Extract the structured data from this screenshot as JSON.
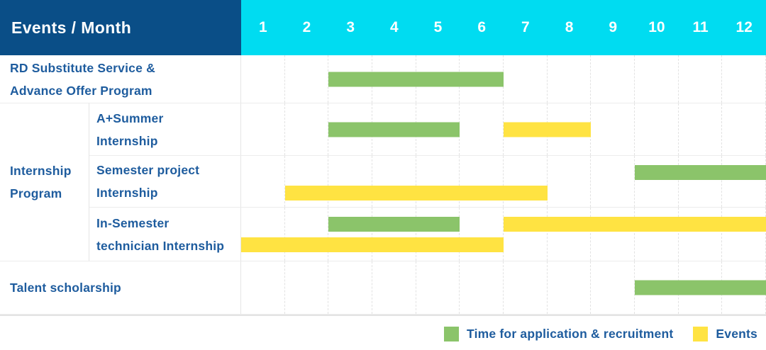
{
  "table": {
    "corner_label": "Events / Month",
    "months": [
      "1",
      "2",
      "3",
      "4",
      "5",
      "6",
      "7",
      "8",
      "9",
      "10",
      "11",
      "12"
    ],
    "group_label": "Internship\nProgram",
    "rows": [
      {
        "label": "RD Substitute Service &\nAdvance Offer Program",
        "bars": [
          {
            "color": "green",
            "start": 3,
            "end": 6,
            "line": "center"
          }
        ]
      },
      {
        "label": "A+Summer\nInternship",
        "bars": [
          {
            "color": "green",
            "start": 3,
            "end": 5,
            "line": "center"
          },
          {
            "color": "yellow",
            "start": 7,
            "end": 8,
            "line": "center"
          }
        ]
      },
      {
        "label": "Semester project\nInternship",
        "bars": [
          {
            "color": "green",
            "start": 10,
            "end": 12,
            "line": "top"
          },
          {
            "color": "yellow",
            "start": 2,
            "end": 7,
            "line": "bottom"
          }
        ]
      },
      {
        "label": "In-Semester\ntechnician Internship",
        "bars": [
          {
            "color": "green",
            "start": 3,
            "end": 5,
            "line": "top"
          },
          {
            "color": "yellow",
            "start": 7,
            "end": 12,
            "line": "top"
          },
          {
            "color": "yellow",
            "start": 1,
            "end": 6,
            "line": "bottom"
          }
        ]
      },
      {
        "label": "Talent scholarship",
        "bars": [
          {
            "color": "green",
            "start": 10,
            "end": 12,
            "line": "center"
          }
        ]
      }
    ]
  },
  "legend": [
    {
      "color": "#8BC46A",
      "label": "Time for application & recruitment"
    },
    {
      "color": "#FFE342",
      "label": "Events"
    }
  ],
  "colors": {
    "header_bg": "#0A4E87",
    "months_bg": "#00DCF1",
    "label_text": "#1E5C9E",
    "application_green": "#8BC46A",
    "event_yellow": "#FFE342"
  },
  "chart_data": {
    "type": "table",
    "subtype": "gantt-timeline",
    "title": "Events / Month",
    "x": {
      "label": "Month",
      "ticks": [
        1,
        2,
        3,
        4,
        5,
        6,
        7,
        8,
        9,
        10,
        11,
        12
      ],
      "range": [
        1,
        12
      ],
      "grid": true
    },
    "legend_position": "bottom-right",
    "legend": [
      {
        "name": "Time for application & recruitment",
        "color": "#8BC46A"
      },
      {
        "name": "Events",
        "color": "#FFE342"
      }
    ],
    "rows": [
      {
        "event": "RD Substitute Service & Advance Offer Program",
        "group": null,
        "application_recruitment_months": [
          [
            3,
            6
          ]
        ],
        "event_months": []
      },
      {
        "event": "A+Summer Internship",
        "group": "Internship Program",
        "application_recruitment_months": [
          [
            3,
            5
          ]
        ],
        "event_months": [
          [
            7,
            8
          ]
        ]
      },
      {
        "event": "Semester project Internship",
        "group": "Internship Program",
        "application_recruitment_months": [
          [
            10,
            12
          ]
        ],
        "event_months": [
          [
            2,
            7
          ]
        ]
      },
      {
        "event": "In-Semester technician Internship",
        "group": "Internship Program",
        "application_recruitment_months": [
          [
            3,
            5
          ]
        ],
        "event_months": [
          [
            1,
            6
          ],
          [
            7,
            12
          ]
        ]
      },
      {
        "event": "Talent scholarship",
        "group": null,
        "application_recruitment_months": [
          [
            10,
            12
          ]
        ],
        "event_months": []
      }
    ]
  }
}
